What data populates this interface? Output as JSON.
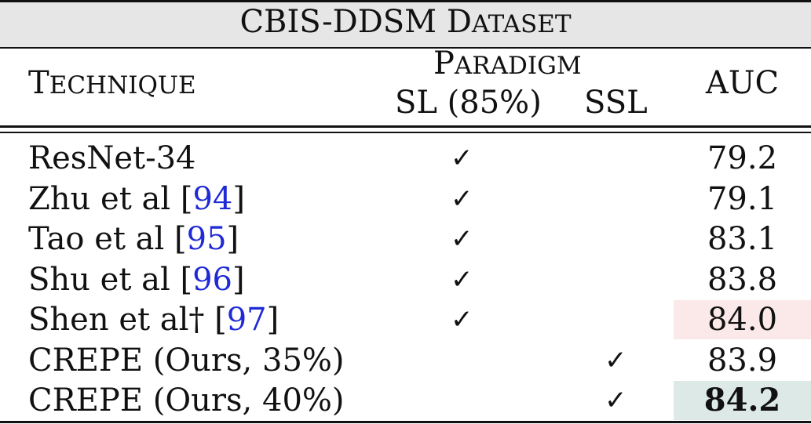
{
  "title": {
    "first": "CBIS-DDSM D",
    "rest": "ATASET"
  },
  "header": {
    "technique": {
      "first": "T",
      "rest": "ECHNIQUE"
    },
    "paradigm": {
      "first": "P",
      "rest": "ARADIGM"
    },
    "sl": "SL (85%)",
    "ssl": "SSL",
    "auc": "AUC"
  },
  "check_glyph": "✓",
  "rows": [
    {
      "name": "ResNet-34",
      "ref": "",
      "suffix": "",
      "sl": true,
      "ssl": false,
      "auc": "79.2",
      "highlight": ""
    },
    {
      "name": "Zhu et al [",
      "ref": "94",
      "suffix": "]",
      "sl": true,
      "ssl": false,
      "auc": "79.1",
      "highlight": ""
    },
    {
      "name": "Tao et al [",
      "ref": "95",
      "suffix": "]",
      "sl": true,
      "ssl": false,
      "auc": "83.1",
      "highlight": ""
    },
    {
      "name": "Shu et al [",
      "ref": "96",
      "suffix": "]",
      "sl": true,
      "ssl": false,
      "auc": "83.8",
      "highlight": ""
    },
    {
      "name": "Shen et al† [",
      "ref": "97",
      "suffix": "]",
      "sl": true,
      "ssl": false,
      "auc": "84.0",
      "highlight": "#fbe9e9"
    },
    {
      "name": "CREPE (Ours, 35%)",
      "ref": "",
      "suffix": "",
      "sl": false,
      "ssl": true,
      "auc": "83.9",
      "highlight": ""
    },
    {
      "name": "CREPE (Ours, 40%)",
      "ref": "",
      "suffix": "",
      "sl": false,
      "ssl": true,
      "auc": "84.2",
      "highlight": "#dde9e7",
      "bold": true
    }
  ]
}
